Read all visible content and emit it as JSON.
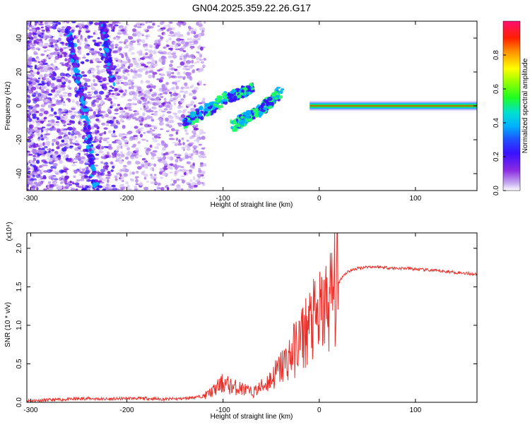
{
  "title": "GN04.2025.359.22.26.G17",
  "chart_data": [
    {
      "type": "heatmap",
      "name": "spectrogram",
      "xlabel": "Height of straight line (km)",
      "ylabel": "Frequency (Hz)",
      "xlim": [
        -304,
        164
      ],
      "ylim": [
        -50,
        50
      ],
      "xticks": [
        -300,
        -200,
        -100,
        0,
        100
      ],
      "yticks": [
        -40,
        -20,
        0,
        20,
        40
      ],
      "colorbar": {
        "label": "Normalized spectral amplitude",
        "range": [
          0,
          1
        ],
        "ticks": [
          "0.0",
          "0.2",
          "0.4",
          "0.6",
          "0.8"
        ],
        "tick_values": [
          0.0,
          0.2,
          0.4,
          0.6,
          0.8
        ]
      },
      "features": [
        {
          "label": "main carrier band",
          "x_from": 0,
          "x_to": 164,
          "frequency": 0,
          "amplitude": 0.95
        },
        {
          "label": "diagonal track 1",
          "points": [
            [
              -262,
              48
            ],
            [
              -245,
              0
            ],
            [
              -232,
              -50
            ]
          ],
          "amplitude": 0.35
        },
        {
          "label": "diagonal track 2",
          "points": [
            [
              -226,
              50
            ],
            [
              -215,
              15
            ]
          ],
          "amplitude": 0.3
        },
        {
          "label": "rising cluster",
          "points": [
            [
              -140,
              -10
            ],
            [
              -95,
              5
            ],
            [
              -70,
              10
            ]
          ],
          "amplitude": 0.45
        },
        {
          "label": "rising cluster 2",
          "points": [
            [
              -90,
              -12
            ],
            [
              -60,
              -2
            ],
            [
              -40,
              8
            ]
          ],
          "amplitude": 0.5
        }
      ]
    },
    {
      "type": "line",
      "name": "snr",
      "xlabel": "Height of straight line (km)",
      "ylabel": "SNR (10 * v/v)",
      "yscale_label": "(x10⁴)",
      "xlim": [
        -304,
        164
      ],
      "ylim": [
        0,
        2.2
      ],
      "xticks": [
        -300,
        -200,
        -100,
        0,
        100
      ],
      "yticks": [
        "0.0",
        "0.5",
        "1.0",
        "1.5",
        "2.0"
      ],
      "ytick_values": [
        0.0,
        0.5,
        1.0,
        1.5,
        2.0
      ],
      "color": "#e8302a",
      "series": {
        "x": [
          -304,
          -280,
          -260,
          -240,
          -220,
          -200,
          -180,
          -160,
          -140,
          -120,
          -110,
          -100,
          -90,
          -80,
          -70,
          -60,
          -50,
          -40,
          -30,
          -20,
          -15,
          -10,
          -5,
          0,
          5,
          10,
          15,
          20,
          25,
          30,
          40,
          50,
          60,
          70,
          80,
          90,
          100,
          110,
          120,
          130,
          140,
          150,
          164
        ],
        "y": [
          0.02,
          0.03,
          0.04,
          0.05,
          0.04,
          0.05,
          0.05,
          0.04,
          0.05,
          0.08,
          0.15,
          0.25,
          0.2,
          0.18,
          0.12,
          0.2,
          0.3,
          0.45,
          0.6,
          0.8,
          0.9,
          1.0,
          1.05,
          1.1,
          1.2,
          1.3,
          1.45,
          1.55,
          1.65,
          1.7,
          1.74,
          1.76,
          1.76,
          1.75,
          1.74,
          1.74,
          1.73,
          1.72,
          1.71,
          1.7,
          1.69,
          1.68,
          1.66
        ]
      }
    }
  ]
}
